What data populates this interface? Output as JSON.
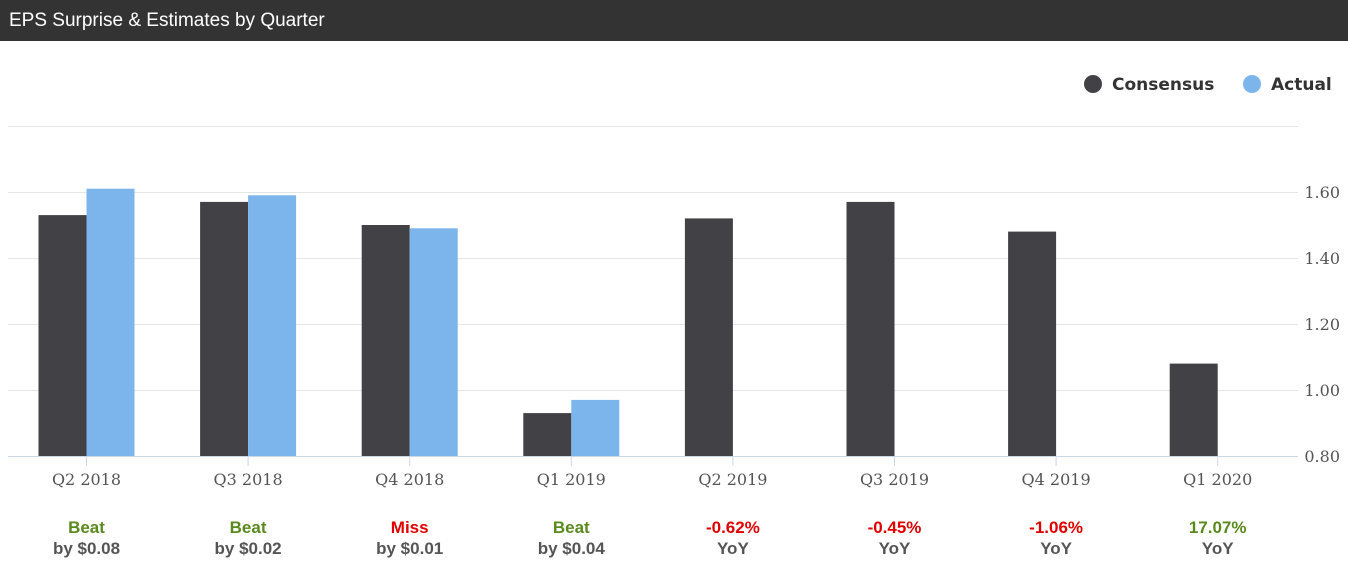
{
  "header": {
    "title": "EPS Surprise & Estimates by Quarter"
  },
  "colors": {
    "consensus": "#424146",
    "actual": "#7cb5ec",
    "beat": "#5a8a1e",
    "miss": "#e00000",
    "header_bg": "#333333"
  },
  "chart_data": {
    "type": "bar",
    "categories": [
      "Q2 2018",
      "Q3 2018",
      "Q4 2018",
      "Q1 2019",
      "Q2 2019",
      "Q3 2019",
      "Q4 2019",
      "Q1 2020"
    ],
    "series": [
      {
        "name": "Consensus",
        "values": [
          1.53,
          1.57,
          1.5,
          0.93,
          1.52,
          1.57,
          1.48,
          1.08
        ]
      },
      {
        "name": "Actual",
        "values": [
          1.61,
          1.59,
          1.49,
          0.97,
          null,
          null,
          null,
          null
        ]
      }
    ],
    "yticks": [
      "0.80",
      "1.00",
      "1.20",
      "1.40",
      "1.60"
    ],
    "ylim": [
      0.8,
      1.8
    ],
    "legend_position": "top-right",
    "y_axis_side": "right",
    "grid": true
  },
  "footer": [
    {
      "line1": "Beat",
      "line2": "by $0.08",
      "status": "beat"
    },
    {
      "line1": "Beat",
      "line2": "by $0.02",
      "status": "beat"
    },
    {
      "line1": "Miss",
      "line2": "by $0.01",
      "status": "miss"
    },
    {
      "line1": "Beat",
      "line2": "by $0.04",
      "status": "beat"
    },
    {
      "line1": "-0.62%",
      "line2": "YoY",
      "status": "miss"
    },
    {
      "line1": "-0.45%",
      "line2": "YoY",
      "status": "miss"
    },
    {
      "line1": "-1.06%",
      "line2": "YoY",
      "status": "miss"
    },
    {
      "line1": "17.07%",
      "line2": "YoY",
      "status": "beat"
    }
  ]
}
